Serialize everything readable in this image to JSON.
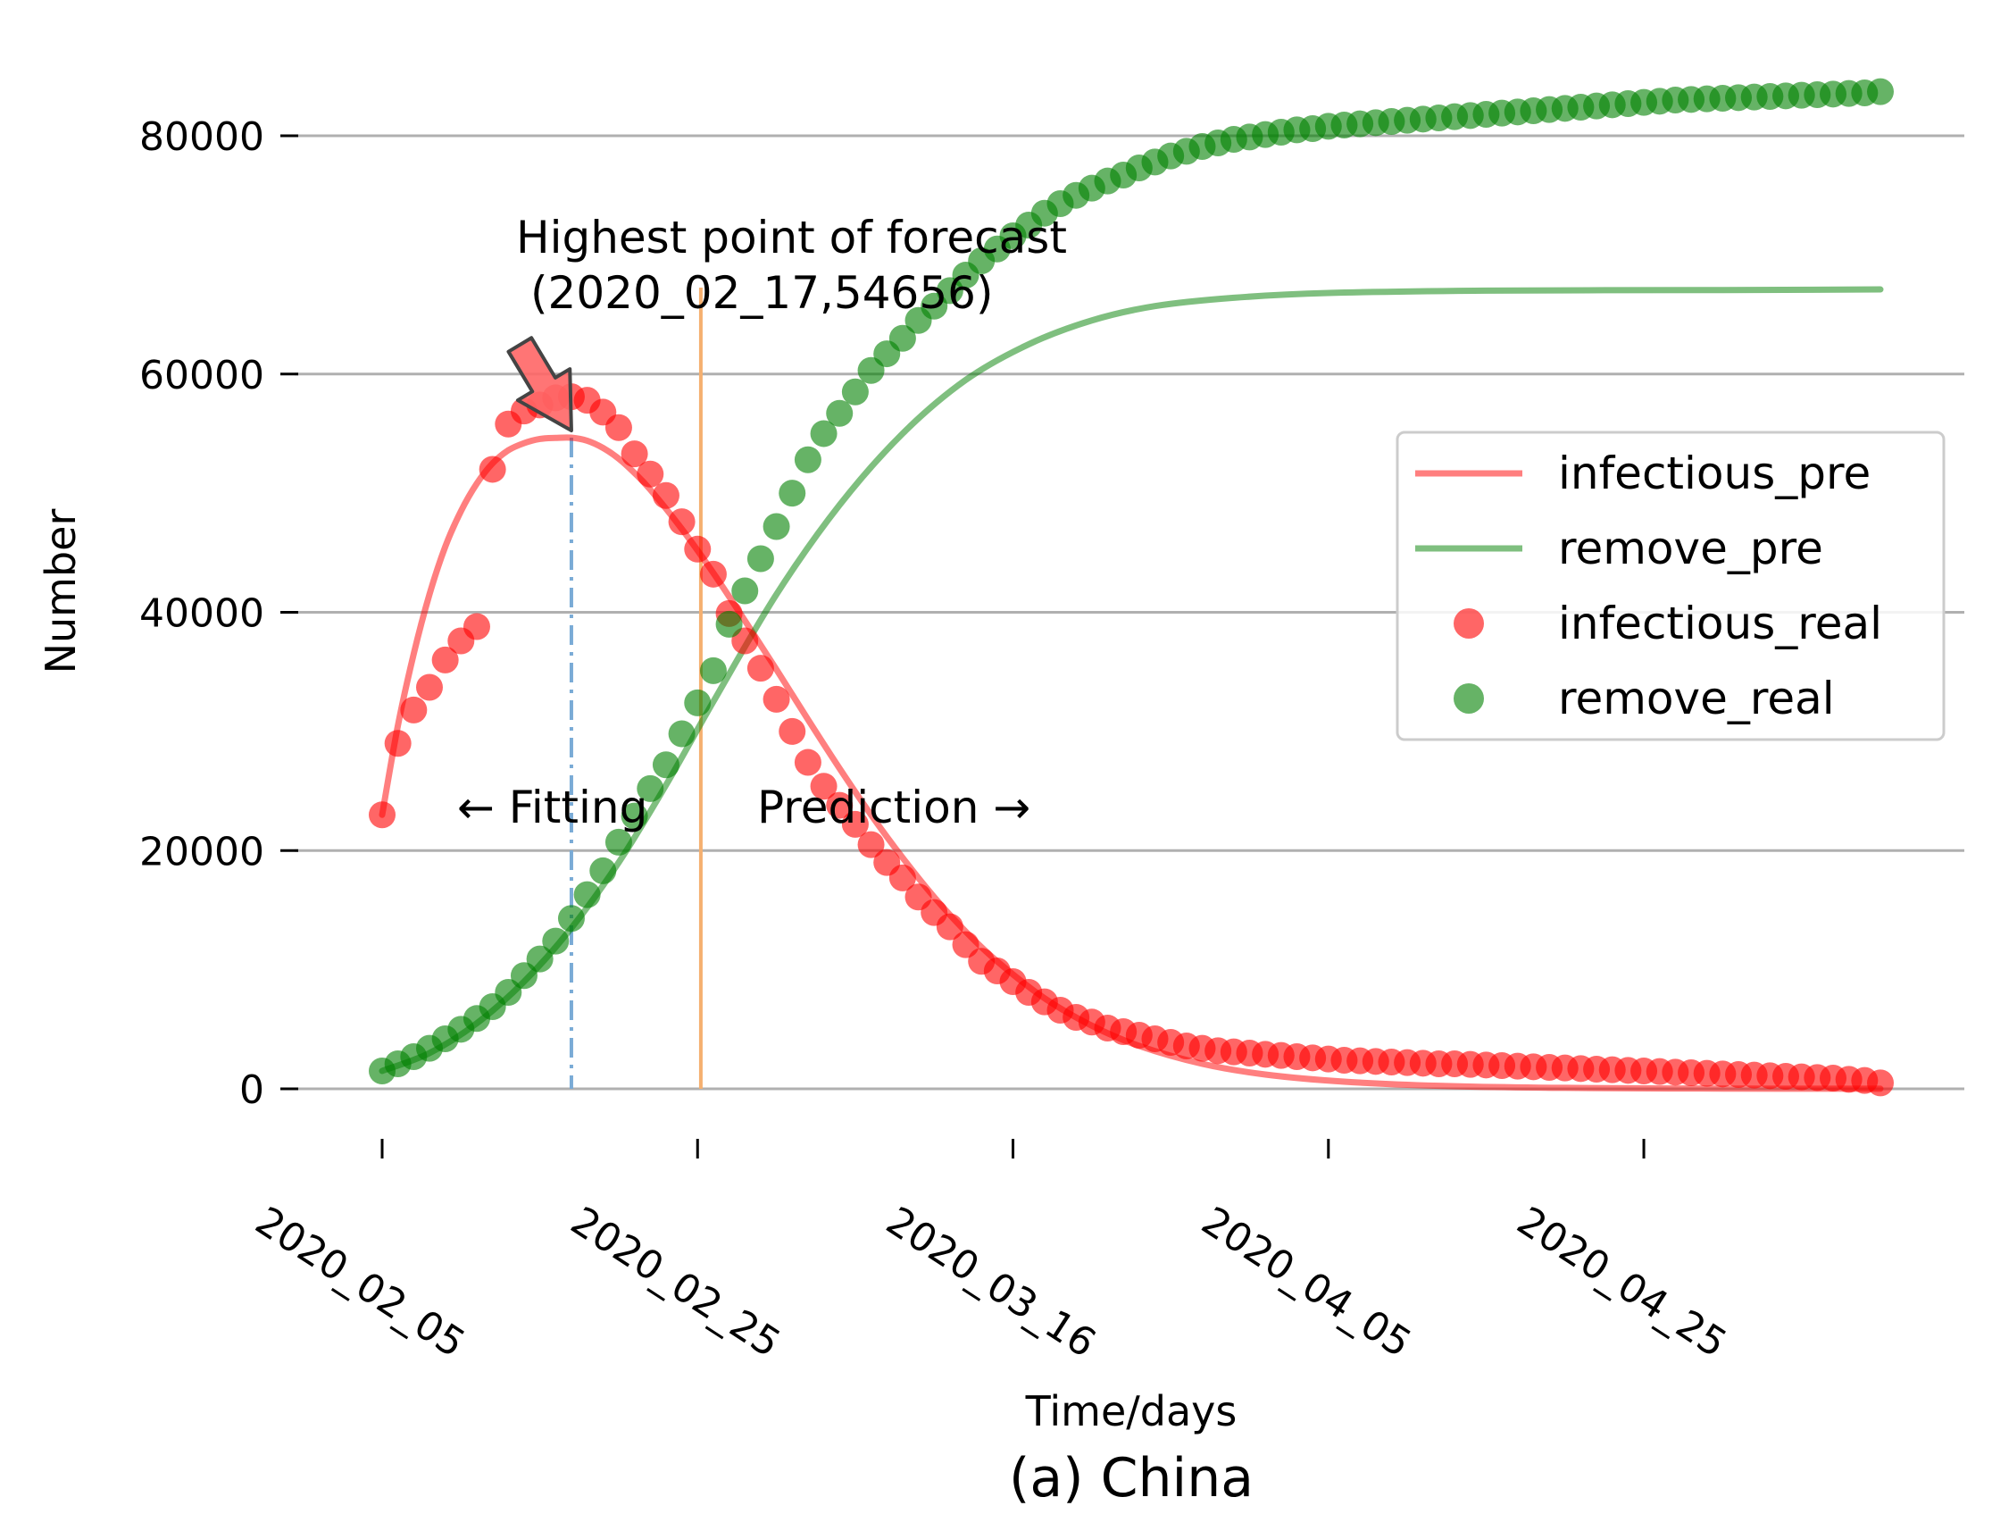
{
  "chart_data": {
    "type": "line",
    "title": "",
    "caption": "(a) China",
    "xlabel": "Time/days",
    "ylabel": "Number",
    "x_start": "2020_02_05",
    "x_end": "2020_05_10",
    "x_ticks": [
      "2020_02_05",
      "2020_02_25",
      "2020_03_16",
      "2020_04_05",
      "2020_04_25"
    ],
    "y_ticks": [
      0,
      20000,
      40000,
      60000,
      80000
    ],
    "y_tick_labels": [
      "0",
      "20000",
      "40000",
      "60000",
      "80000"
    ],
    "ylim": [
      -3000,
      87000
    ],
    "grid": "horizontal",
    "legend_position": "right",
    "fitting_end": "2020_02_17",
    "fitting_label": "← Fitting",
    "prediction_start": "2020_02_26",
    "prediction_label": "Prediction →",
    "annotation": {
      "line1": "Highest point of forecast",
      "line2": "(2020_02_17,54656)",
      "x": "2020_02_17",
      "y": 54656
    },
    "series": [
      {
        "name": "infectious_pre",
        "kind": "line",
        "color": "#ff0000",
        "points": [
          [
            "2020_02_05",
            23000
          ],
          [
            "2020_02_06",
            30500
          ],
          [
            "2020_02_07",
            36500
          ],
          [
            "2020_02_08",
            41500
          ],
          [
            "2020_02_09",
            45500
          ],
          [
            "2020_02_10",
            48500
          ],
          [
            "2020_02_11",
            50800
          ],
          [
            "2020_02_12",
            52500
          ],
          [
            "2020_02_13",
            53600
          ],
          [
            "2020_02_14",
            54200
          ],
          [
            "2020_02_15",
            54550
          ],
          [
            "2020_02_16",
            54640
          ],
          [
            "2020_02_17",
            54656
          ],
          [
            "2020_02_18",
            54400
          ],
          [
            "2020_02_19",
            53800
          ],
          [
            "2020_02_20",
            52900
          ],
          [
            "2020_02_21",
            51700
          ],
          [
            "2020_02_22",
            50300
          ],
          [
            "2020_02_24",
            47000
          ],
          [
            "2020_02_26",
            43300
          ],
          [
            "2020_02_28",
            39300
          ],
          [
            "2020_03_01",
            35200
          ],
          [
            "2020_03_03",
            31000
          ],
          [
            "2020_03_05",
            26900
          ],
          [
            "2020_03_07",
            23000
          ],
          [
            "2020_03_09",
            19400
          ],
          [
            "2020_03_11",
            16100
          ],
          [
            "2020_03_13",
            13200
          ],
          [
            "2020_03_15",
            10700
          ],
          [
            "2020_03_18",
            7600
          ],
          [
            "2020_03_21",
            5300
          ],
          [
            "2020_03_24",
            3600
          ],
          [
            "2020_03_28",
            2100
          ],
          [
            "2020_04_01",
            1200
          ],
          [
            "2020_04_06",
            600
          ],
          [
            "2020_04_12",
            250
          ],
          [
            "2020_04_20",
            80
          ],
          [
            "2020_04_30",
            20
          ],
          [
            "2020_05_10",
            5
          ]
        ]
      },
      {
        "name": "remove_pre",
        "kind": "line",
        "color": "#008000",
        "points": [
          [
            "2020_02_05",
            1500
          ],
          [
            "2020_02_08",
            3000
          ],
          [
            "2020_02_11",
            5500
          ],
          [
            "2020_02_14",
            9000
          ],
          [
            "2020_02_17",
            13500
          ],
          [
            "2020_02_20",
            19000
          ],
          [
            "2020_02_23",
            25500
          ],
          [
            "2020_02_26",
            32500
          ],
          [
            "2020_03_01",
            41500
          ],
          [
            "2020_03_05",
            49000
          ],
          [
            "2020_03_09",
            55000
          ],
          [
            "2020_03_13",
            59500
          ],
          [
            "2020_03_17",
            62500
          ],
          [
            "2020_03_21",
            64500
          ],
          [
            "2020_03_25",
            65700
          ],
          [
            "2020_03_30",
            66400
          ],
          [
            "2020_04_05",
            66800
          ],
          [
            "2020_04_15",
            67000
          ],
          [
            "2020_04_30",
            67050
          ],
          [
            "2020_05_10",
            67100
          ]
        ]
      },
      {
        "name": "infectious_real",
        "kind": "scatter",
        "color": "#ff0000",
        "points": [
          [
            "2020_02_05",
            23000
          ],
          [
            "2020_02_06",
            29000
          ],
          [
            "2020_02_07",
            31800
          ],
          [
            "2020_02_08",
            33700
          ],
          [
            "2020_02_09",
            36000
          ],
          [
            "2020_02_10",
            37600
          ],
          [
            "2020_02_11",
            38800
          ],
          [
            "2020_02_12",
            52000
          ],
          [
            "2020_02_13",
            55800
          ],
          [
            "2020_02_14",
            56900
          ],
          [
            "2020_02_15",
            57400
          ],
          [
            "2020_02_16",
            58000
          ],
          [
            "2020_02_17",
            58100
          ],
          [
            "2020_02_18",
            57800
          ],
          [
            "2020_02_19",
            56800
          ],
          [
            "2020_02_20",
            55500
          ],
          [
            "2020_02_21",
            53300
          ],
          [
            "2020_02_22",
            51600
          ],
          [
            "2020_02_23",
            49800
          ],
          [
            "2020_02_24",
            47600
          ],
          [
            "2020_02_25",
            45300
          ],
          [
            "2020_02_26",
            43200
          ],
          [
            "2020_02_27",
            39900
          ],
          [
            "2020_02_28",
            37600
          ],
          [
            "2020_02_29",
            35300
          ],
          [
            "2020_03_01",
            32700
          ],
          [
            "2020_03_02",
            30000
          ],
          [
            "2020_03_03",
            27400
          ],
          [
            "2020_03_04",
            25400
          ],
          [
            "2020_03_05",
            23800
          ],
          [
            "2020_03_06",
            22200
          ],
          [
            "2020_03_07",
            20500
          ],
          [
            "2020_03_08",
            19000
          ],
          [
            "2020_03_09",
            17700
          ],
          [
            "2020_03_10",
            16100
          ],
          [
            "2020_03_11",
            14800
          ],
          [
            "2020_03_12",
            13600
          ],
          [
            "2020_03_13",
            12100
          ],
          [
            "2020_03_14",
            10700
          ],
          [
            "2020_03_15",
            9900
          ],
          [
            "2020_03_16",
            9000
          ],
          [
            "2020_03_17",
            8100
          ],
          [
            "2020_03_18",
            7300
          ],
          [
            "2020_03_19",
            6600
          ],
          [
            "2020_03_20",
            6000
          ],
          [
            "2020_03_21",
            5600
          ],
          [
            "2020_03_22",
            5100
          ],
          [
            "2020_03_23",
            4800
          ],
          [
            "2020_03_24",
            4500
          ],
          [
            "2020_03_25",
            4200
          ],
          [
            "2020_03_26",
            3900
          ],
          [
            "2020_03_27",
            3600
          ],
          [
            "2020_03_28",
            3400
          ],
          [
            "2020_03_29",
            3200
          ],
          [
            "2020_03_30",
            3100
          ],
          [
            "2020_03_31",
            3000
          ],
          [
            "2020_04_01",
            2900
          ],
          [
            "2020_04_02",
            2800
          ],
          [
            "2020_04_03",
            2700
          ],
          [
            "2020_04_04",
            2600
          ],
          [
            "2020_04_05",
            2500
          ],
          [
            "2020_04_06",
            2400
          ],
          [
            "2020_04_07",
            2350
          ],
          [
            "2020_04_08",
            2300
          ],
          [
            "2020_04_09",
            2250
          ],
          [
            "2020_04_10",
            2200
          ],
          [
            "2020_04_11",
            2150
          ],
          [
            "2020_04_12",
            2100
          ],
          [
            "2020_04_13",
            2100
          ],
          [
            "2020_04_14",
            2050
          ],
          [
            "2020_04_15",
            2000
          ],
          [
            "2020_04_16",
            1950
          ],
          [
            "2020_04_17",
            1900
          ],
          [
            "2020_04_18",
            1850
          ],
          [
            "2020_04_19",
            1800
          ],
          [
            "2020_04_20",
            1750
          ],
          [
            "2020_04_21",
            1700
          ],
          [
            "2020_04_22",
            1650
          ],
          [
            "2020_04_23",
            1600
          ],
          [
            "2020_04_24",
            1550
          ],
          [
            "2020_04_25",
            1500
          ],
          [
            "2020_04_26",
            1450
          ],
          [
            "2020_04_27",
            1400
          ],
          [
            "2020_04_28",
            1350
          ],
          [
            "2020_04_29",
            1300
          ],
          [
            "2020_04_30",
            1250
          ],
          [
            "2020_05_01",
            1200
          ],
          [
            "2020_05_02",
            1150
          ],
          [
            "2020_05_03",
            1100
          ],
          [
            "2020_05_04",
            1050
          ],
          [
            "2020_05_05",
            1000
          ],
          [
            "2020_05_06",
            950
          ],
          [
            "2020_05_07",
            900
          ],
          [
            "2020_05_08",
            800
          ],
          [
            "2020_05_09",
            700
          ],
          [
            "2020_05_10",
            500
          ]
        ]
      },
      {
        "name": "remove_real",
        "kind": "scatter",
        "color": "#008000",
        "points": [
          [
            "2020_02_05",
            1500
          ],
          [
            "2020_02_06",
            2100
          ],
          [
            "2020_02_07",
            2700
          ],
          [
            "2020_02_08",
            3400
          ],
          [
            "2020_02_09",
            4200
          ],
          [
            "2020_02_10",
            5000
          ],
          [
            "2020_02_11",
            5900
          ],
          [
            "2020_02_12",
            6900
          ],
          [
            "2020_02_13",
            8100
          ],
          [
            "2020_02_14",
            9500
          ],
          [
            "2020_02_15",
            10900
          ],
          [
            "2020_02_16",
            12400
          ],
          [
            "2020_02_17",
            14300
          ],
          [
            "2020_02_18",
            16300
          ],
          [
            "2020_02_19",
            18300
          ],
          [
            "2020_02_20",
            20700
          ],
          [
            "2020_02_21",
            22900
          ],
          [
            "2020_02_22",
            25200
          ],
          [
            "2020_02_23",
            27200
          ],
          [
            "2020_02_24",
            29800
          ],
          [
            "2020_02_25",
            32400
          ],
          [
            "2020_02_26",
            35100
          ],
          [
            "2020_02_27",
            39000
          ],
          [
            "2020_02_28",
            41800
          ],
          [
            "2020_02_29",
            44500
          ],
          [
            "2020_03_01",
            47200
          ],
          [
            "2020_03_02",
            50000
          ],
          [
            "2020_03_03",
            52800
          ],
          [
            "2020_03_04",
            55000
          ],
          [
            "2020_03_05",
            56700
          ],
          [
            "2020_03_06",
            58500
          ],
          [
            "2020_03_07",
            60300
          ],
          [
            "2020_03_08",
            61700
          ],
          [
            "2020_03_09",
            63000
          ],
          [
            "2020_03_10",
            64500
          ],
          [
            "2020_03_11",
            65700
          ],
          [
            "2020_03_12",
            67000
          ],
          [
            "2020_03_13",
            68300
          ],
          [
            "2020_03_14",
            69500
          ],
          [
            "2020_03_15",
            70500
          ],
          [
            "2020_03_16",
            71600
          ],
          [
            "2020_03_17",
            72500
          ],
          [
            "2020_03_18",
            73500
          ],
          [
            "2020_03_19",
            74300
          ],
          [
            "2020_03_20",
            75000
          ],
          [
            "2020_03_21",
            75600
          ],
          [
            "2020_03_22",
            76200
          ],
          [
            "2020_03_23",
            76700
          ],
          [
            "2020_03_24",
            77300
          ],
          [
            "2020_03_25",
            77800
          ],
          [
            "2020_03_26",
            78300
          ],
          [
            "2020_03_27",
            78700
          ],
          [
            "2020_03_28",
            79100
          ],
          [
            "2020_03_29",
            79400
          ],
          [
            "2020_03_30",
            79700
          ],
          [
            "2020_03_31",
            79900
          ],
          [
            "2020_04_01",
            80100
          ],
          [
            "2020_04_02",
            80300
          ],
          [
            "2020_04_03",
            80500
          ],
          [
            "2020_04_04",
            80600
          ],
          [
            "2020_04_05",
            80800
          ],
          [
            "2020_04_06",
            80900
          ],
          [
            "2020_04_07",
            81000
          ],
          [
            "2020_04_08",
            81100
          ],
          [
            "2020_04_09",
            81200
          ],
          [
            "2020_04_10",
            81300
          ],
          [
            "2020_04_11",
            81400
          ],
          [
            "2020_04_12",
            81500
          ],
          [
            "2020_04_13",
            81600
          ],
          [
            "2020_04_14",
            81700
          ],
          [
            "2020_04_15",
            81800
          ],
          [
            "2020_04_16",
            81900
          ],
          [
            "2020_04_17",
            82000
          ],
          [
            "2020_04_18",
            82100
          ],
          [
            "2020_04_19",
            82200
          ],
          [
            "2020_04_20",
            82300
          ],
          [
            "2020_04_21",
            82400
          ],
          [
            "2020_04_22",
            82500
          ],
          [
            "2020_04_23",
            82600
          ],
          [
            "2020_04_24",
            82700
          ],
          [
            "2020_04_25",
            82800
          ],
          [
            "2020_04_26",
            82900
          ],
          [
            "2020_04_27",
            83000
          ],
          [
            "2020_04_28",
            83050
          ],
          [
            "2020_04_29",
            83100
          ],
          [
            "2020_04_30",
            83150
          ],
          [
            "2020_05_01",
            83200
          ],
          [
            "2020_05_02",
            83250
          ],
          [
            "2020_05_03",
            83300
          ],
          [
            "2020_05_04",
            83350
          ],
          [
            "2020_05_05",
            83400
          ],
          [
            "2020_05_06",
            83450
          ],
          [
            "2020_05_07",
            83500
          ],
          [
            "2020_05_08",
            83550
          ],
          [
            "2020_05_09",
            83600
          ],
          [
            "2020_05_10",
            83700
          ]
        ]
      }
    ]
  }
}
